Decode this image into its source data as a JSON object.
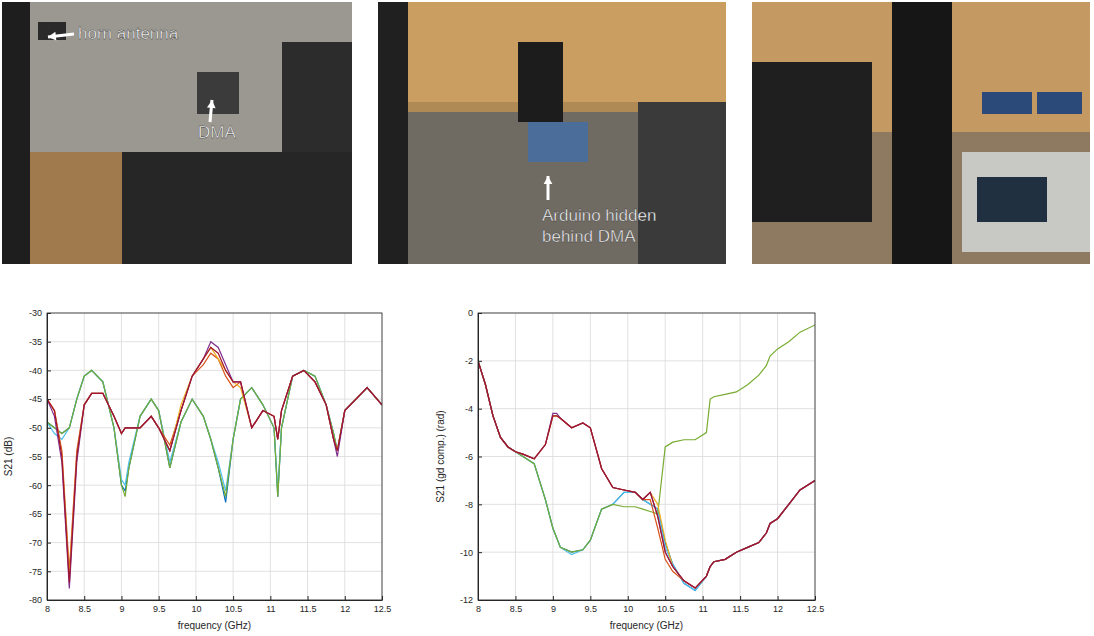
{
  "photos": [
    {
      "annotations": [
        {
          "lines": [
            "horn antenna"
          ]
        },
        {
          "lines": [
            "DMA"
          ]
        }
      ]
    },
    {
      "annotations": [
        {
          "lines": [
            "Arduino hidden",
            "behind DMA"
          ]
        }
      ]
    },
    {
      "annotations": []
    }
  ],
  "chart_data": [
    {
      "type": "line",
      "x_label": "frequency (GHz)",
      "y_label": "S21 (dB)",
      "xlim": [
        8,
        12.5
      ],
      "ylim": [
        -80,
        -30
      ],
      "xticks": [
        8,
        8.5,
        9,
        9.5,
        10,
        10.5,
        11,
        11.5,
        12,
        12.5
      ],
      "yticks": [
        -80,
        -75,
        -70,
        -65,
        -60,
        -55,
        -50,
        -45,
        -40,
        -35,
        -30
      ],
      "grid": true,
      "x": [
        8,
        8.1,
        8.2,
        8.3,
        8.4,
        8.5,
        8.6,
        8.75,
        8.9,
        9.0,
        9.05,
        9.1,
        9.25,
        9.4,
        9.5,
        9.65,
        9.8,
        9.95,
        10.1,
        10.2,
        10.3,
        10.4,
        10.5,
        10.6,
        10.75,
        10.9,
        11.05,
        11.1,
        11.15,
        11.3,
        11.45,
        11.6,
        11.75,
        11.85,
        11.9,
        12.0,
        12.15,
        12.3,
        12.5
      ],
      "series": [
        {
          "color": "#0072BD",
          "values": [
            -49,
            -50,
            -51,
            -50,
            -45,
            -41,
            -40,
            -42,
            -50,
            -60,
            -61,
            -57,
            -48,
            -45,
            -47,
            -57,
            -49,
            -45,
            -48,
            -52,
            -57,
            -63,
            -52,
            -45,
            -43,
            -46,
            -50,
            -62,
            -50,
            -41,
            -40,
            -41,
            -46,
            -51,
            -54,
            -47,
            -45,
            -43,
            -46
          ]
        },
        {
          "color": "#4DBEEE",
          "values": [
            -49,
            -51,
            -52,
            -50,
            -45,
            -41,
            -40,
            -42,
            -50,
            -59,
            -60,
            -56,
            -48,
            -45,
            -47,
            -56,
            -49,
            -45,
            -48,
            -52,
            -56,
            -61,
            -52,
            -45,
            -43,
            -46,
            -50,
            -61,
            -50,
            -41,
            -40,
            -41,
            -46,
            -51,
            -54,
            -47,
            -45,
            -43,
            -46
          ]
        },
        {
          "color": "#77AC30",
          "values": [
            -49,
            -50,
            -51,
            -50,
            -45,
            -41,
            -40,
            -42,
            -50,
            -60,
            -62,
            -57,
            -48,
            -45,
            -47,
            -57,
            -49,
            -45,
            -48,
            -52,
            -57,
            -62,
            -52,
            -45,
            -43,
            -46,
            -50,
            -62,
            -50,
            -41,
            -40,
            -41,
            -46,
            -51,
            -54,
            -47,
            -45,
            -43,
            -46
          ]
        },
        {
          "color": "#D95319",
          "values": [
            -45,
            -47,
            -54,
            -75,
            -54,
            -46,
            -44,
            -44,
            -48,
            -51,
            -50,
            -50,
            -50,
            -48,
            -50,
            -53,
            -47,
            -41,
            -39,
            -37,
            -38,
            -41,
            -43,
            -42,
            -50,
            -47,
            -48,
            -52,
            -47,
            -41,
            -40,
            -42,
            -46,
            -52,
            -54,
            -47,
            -45,
            -43,
            -46
          ]
        },
        {
          "color": "#EDB120",
          "values": [
            -45,
            -47,
            -55,
            -76,
            -55,
            -46,
            -44,
            -44,
            -48,
            -51,
            -50,
            -50,
            -50,
            -48,
            -50,
            -54,
            -46,
            -41,
            -38,
            -36,
            -38,
            -40,
            -42,
            -43,
            -50,
            -47,
            -48,
            -52,
            -47,
            -41,
            -40,
            -42,
            -46,
            -52,
            -54,
            -47,
            -45,
            -43,
            -46
          ]
        },
        {
          "color": "#7E2F8E",
          "values": [
            -45,
            -48,
            -56,
            -78,
            -56,
            -46,
            -44,
            -44,
            -48,
            -51,
            -50,
            -50,
            -50,
            -48,
            -50,
            -54,
            -47,
            -41,
            -38,
            -35,
            -36,
            -39,
            -42,
            -42,
            -50,
            -47,
            -48,
            -52,
            -47,
            -41,
            -40,
            -42,
            -46,
            -52,
            -55,
            -47,
            -45,
            -43,
            -46
          ]
        },
        {
          "color": "#A2142F",
          "values": [
            -45,
            -47,
            -55,
            -77,
            -55,
            -46,
            -44,
            -44,
            -48,
            -51,
            -50,
            -50,
            -50,
            -48,
            -50,
            -54,
            -47,
            -41,
            -38,
            -36,
            -37,
            -40,
            -42,
            -42,
            -50,
            -47,
            -48,
            -52,
            -47,
            -41,
            -40,
            -42,
            -46,
            -52,
            -54,
            -47,
            -45,
            -43,
            -46
          ]
        }
      ]
    },
    {
      "type": "line",
      "x_label": "frequency (GHz)",
      "y_label": "S21 (gd comp.) (rad)",
      "xlim": [
        8,
        12.5
      ],
      "ylim": [
        -12,
        0
      ],
      "xticks": [
        8,
        8.5,
        9,
        9.5,
        10,
        10.5,
        11,
        11.5,
        12,
        12.5
      ],
      "yticks": [
        -12,
        -10,
        -8,
        -6,
        -4,
        -2,
        0
      ],
      "grid": true,
      "x": [
        8,
        8.1,
        8.2,
        8.3,
        8.4,
        8.5,
        8.6,
        8.75,
        8.9,
        9.0,
        9.05,
        9.1,
        9.25,
        9.4,
        9.5,
        9.65,
        9.8,
        9.95,
        10.1,
        10.2,
        10.3,
        10.4,
        10.5,
        10.6,
        10.75,
        10.9,
        11.05,
        11.1,
        11.15,
        11.3,
        11.45,
        11.6,
        11.75,
        11.85,
        11.9,
        12.0,
        12.15,
        12.3,
        12.5
      ],
      "series": [
        {
          "color": "#0072BD",
          "values": [
            -2,
            -3,
            -4.3,
            -5.2,
            -5.6,
            -5.8,
            -6.0,
            -6.3,
            -7.8,
            -9.0,
            -9.4,
            -9.8,
            -10.0,
            -9.9,
            -9.5,
            -8.2,
            -8.0,
            -7.5,
            -7.5,
            -7.8,
            -8.0,
            -8.2,
            -9.6,
            -10.5,
            -11.3,
            -11.6,
            -11.0,
            -10.6,
            -10.4,
            -10.3,
            -10.0,
            -9.8,
            -9.6,
            -9.2,
            -8.8,
            -8.6,
            -8.0,
            -7.4,
            -7.0
          ]
        },
        {
          "color": "#4DBEEE",
          "values": [
            -2,
            -3,
            -4.3,
            -5.2,
            -5.6,
            -5.8,
            -6.0,
            -6.3,
            -7.8,
            -9.0,
            -9.4,
            -9.8,
            -10.1,
            -9.9,
            -9.5,
            -8.2,
            -8.0,
            -7.5,
            -7.5,
            -7.8,
            -8.0,
            -8.2,
            -9.8,
            -10.5,
            -11.3,
            -11.6,
            -11.0,
            -10.6,
            -10.4,
            -10.3,
            -10.0,
            -9.8,
            -9.6,
            -9.2,
            -8.8,
            -8.6,
            -8.0,
            -7.4,
            -7.0
          ]
        },
        {
          "color": "#77AC30",
          "values": [
            -2,
            -3,
            -4.3,
            -5.2,
            -5.6,
            -5.8,
            -6.0,
            -6.3,
            -7.8,
            -9.0,
            -9.4,
            -9.8,
            -10.0,
            -9.9,
            -9.5,
            -8.2,
            -8.0,
            -8.1,
            -8.1,
            -8.2,
            -8.3,
            -8.4,
            -5.6,
            -5.4,
            -5.3,
            -5.3,
            -5.0,
            -3.6,
            -3.5,
            -3.4,
            -3.3,
            -3.0,
            -2.6,
            -2.2,
            -1.8,
            -1.5,
            -1.2,
            -0.8,
            -0.5
          ]
        },
        {
          "color": "#D95319",
          "values": [
            -2,
            -3,
            -4.3,
            -5.2,
            -5.6,
            -5.8,
            -5.9,
            -6.1,
            -5.5,
            -4.3,
            -4.3,
            -4.4,
            -4.8,
            -4.6,
            -4.8,
            -6.5,
            -7.3,
            -7.4,
            -7.5,
            -7.8,
            -7.8,
            -9.0,
            -10.3,
            -10.8,
            -11.2,
            -11.5,
            -11.0,
            -10.6,
            -10.4,
            -10.3,
            -10.0,
            -9.8,
            -9.6,
            -9.2,
            -8.8,
            -8.6,
            -8.0,
            -7.4,
            -7.0
          ]
        },
        {
          "color": "#EDB120",
          "values": [
            -2,
            -3,
            -4.3,
            -5.2,
            -5.6,
            -5.8,
            -5.9,
            -6.1,
            -5.5,
            -4.3,
            -4.3,
            -4.4,
            -4.8,
            -4.6,
            -4.8,
            -6.5,
            -7.3,
            -7.4,
            -7.5,
            -7.8,
            -7.5,
            -8.0,
            -9.5,
            -10.6,
            -11.2,
            -11.5,
            -11.0,
            -10.6,
            -10.4,
            -10.3,
            -10.0,
            -9.8,
            -9.6,
            -9.2,
            -8.8,
            -8.6,
            -8.0,
            -7.4,
            -7.0
          ]
        },
        {
          "color": "#7E2F8E",
          "values": [
            -2,
            -3,
            -4.3,
            -5.2,
            -5.6,
            -5.8,
            -5.9,
            -6.1,
            -5.5,
            -4.2,
            -4.2,
            -4.4,
            -4.8,
            -4.6,
            -4.8,
            -6.5,
            -7.3,
            -7.4,
            -7.5,
            -7.8,
            -7.5,
            -8.5,
            -10.0,
            -10.6,
            -11.2,
            -11.5,
            -11.0,
            -10.6,
            -10.4,
            -10.3,
            -10.0,
            -9.8,
            -9.6,
            -9.2,
            -8.8,
            -8.6,
            -8.0,
            -7.4,
            -7.0
          ]
        },
        {
          "color": "#A2142F",
          "values": [
            -2,
            -3,
            -4.3,
            -5.2,
            -5.6,
            -5.8,
            -5.9,
            -6.1,
            -5.5,
            -4.3,
            -4.3,
            -4.4,
            -4.8,
            -4.6,
            -4.8,
            -6.5,
            -7.3,
            -7.4,
            -7.5,
            -7.8,
            -7.5,
            -8.5,
            -10.0,
            -10.6,
            -11.2,
            -11.5,
            -11.0,
            -10.6,
            -10.4,
            -10.3,
            -10.0,
            -9.8,
            -9.6,
            -9.2,
            -8.8,
            -8.6,
            -8.0,
            -7.4,
            -7.0
          ]
        }
      ]
    }
  ]
}
